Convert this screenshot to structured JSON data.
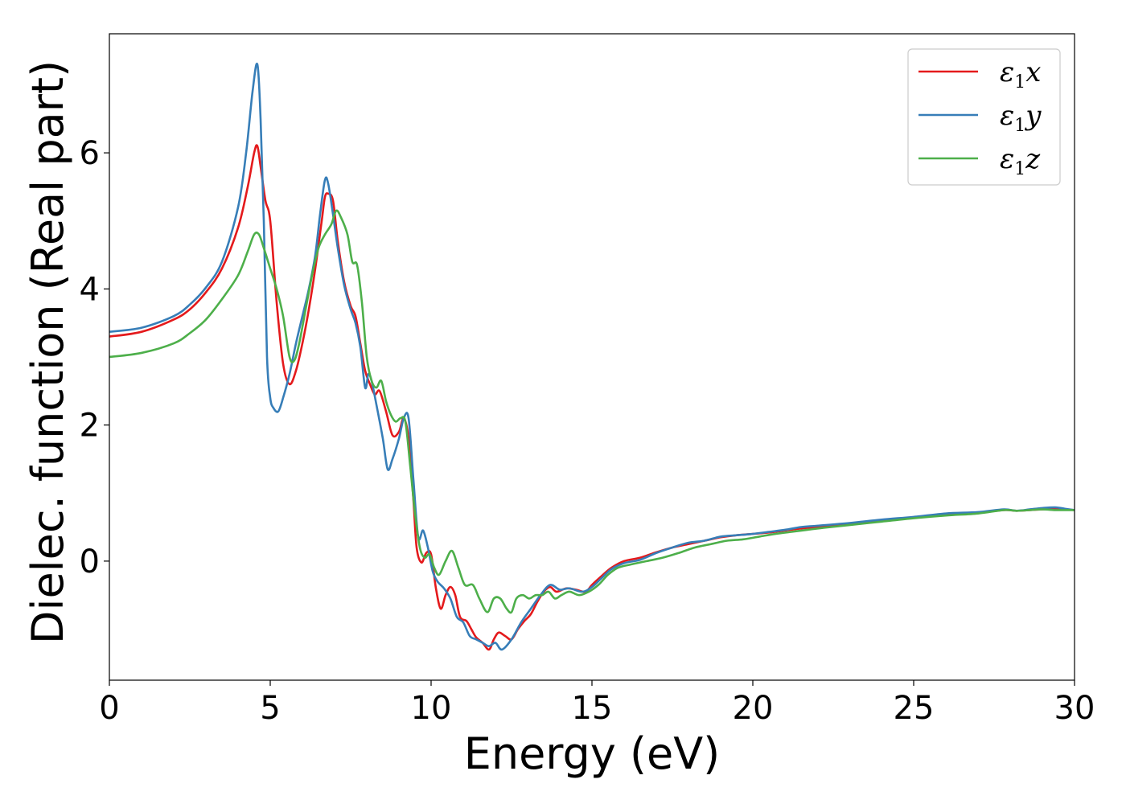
{
  "chart_data": {
    "type": "line",
    "title": "",
    "xlabel": "Energy (eV)",
    "ylabel": "Dielec. function (Real part)",
    "xlim": [
      0,
      30
    ],
    "ylim": [
      -1.75,
      7.75
    ],
    "xticks": [
      0,
      5,
      10,
      15,
      20,
      25,
      30
    ],
    "yticks": [
      0,
      2,
      4,
      6
    ],
    "grid": false,
    "legend_position": "top-right",
    "series": [
      {
        "name": "ε1x",
        "legend_symbol": "ε",
        "legend_subscript": "1",
        "legend_suffix": "x",
        "color": "#e41a1c",
        "x": [
          0,
          1,
          2,
          2.5,
          3,
          3.5,
          4,
          4.3,
          4.5,
          4.6,
          4.7,
          4.85,
          5.0,
          5.2,
          5.4,
          5.6,
          5.8,
          6.0,
          6.2,
          6.4,
          6.6,
          6.7,
          6.8,
          6.95,
          7.1,
          7.3,
          7.5,
          7.65,
          7.8,
          7.95,
          8.1,
          8.25,
          8.4,
          8.6,
          8.8,
          9.0,
          9.15,
          9.3,
          9.45,
          9.55,
          9.7,
          9.85,
          10.0,
          10.15,
          10.3,
          10.45,
          10.6,
          10.75,
          10.9,
          11.1,
          11.25,
          11.4,
          11.6,
          11.8,
          11.95,
          12.1,
          12.3,
          12.5,
          12.7,
          12.9,
          13.1,
          13.3,
          13.5,
          13.7,
          13.9,
          14.2,
          14.5,
          14.8,
          15.0,
          15.3,
          15.6,
          16.0,
          16.5,
          17.0,
          17.5,
          18.0,
          18.5,
          19.0,
          19.5,
          20.0,
          20.5,
          21.0,
          21.5,
          22.0,
          23.0,
          24.0,
          25.0,
          26.0,
          27.0,
          27.8,
          28.2,
          28.6,
          29.0,
          29.4,
          29.7,
          30.0
        ],
        "y": [
          3.3,
          3.37,
          3.55,
          3.7,
          3.95,
          4.3,
          4.9,
          5.5,
          6.0,
          6.1,
          5.8,
          5.3,
          5.0,
          3.8,
          2.9,
          2.6,
          2.8,
          3.2,
          3.7,
          4.3,
          5.0,
          5.35,
          5.4,
          5.3,
          4.7,
          4.1,
          3.75,
          3.6,
          3.2,
          2.8,
          2.6,
          2.45,
          2.5,
          2.2,
          1.85,
          1.9,
          2.1,
          1.8,
          0.9,
          0.2,
          -0.02,
          0.12,
          0.1,
          -0.4,
          -0.7,
          -0.5,
          -0.38,
          -0.5,
          -0.82,
          -0.88,
          -1.0,
          -1.12,
          -1.2,
          -1.3,
          -1.15,
          -1.05,
          -1.1,
          -1.15,
          -1.0,
          -0.88,
          -0.78,
          -0.6,
          -0.45,
          -0.38,
          -0.45,
          -0.4,
          -0.42,
          -0.45,
          -0.35,
          -0.22,
          -0.1,
          0.0,
          0.05,
          0.13,
          0.2,
          0.25,
          0.3,
          0.35,
          0.38,
          0.4,
          0.42,
          0.45,
          0.48,
          0.5,
          0.55,
          0.6,
          0.64,
          0.68,
          0.71,
          0.75,
          0.74,
          0.75,
          0.76,
          0.77,
          0.76,
          0.75
        ]
      },
      {
        "name": "ε1y",
        "legend_symbol": "ε",
        "legend_subscript": "1",
        "legend_suffix": "y",
        "color": "#377eb8",
        "x": [
          0,
          1,
          2,
          2.5,
          3,
          3.5,
          4,
          4.25,
          4.45,
          4.6,
          4.7,
          4.8,
          4.9,
          5.0,
          5.1,
          5.25,
          5.4,
          5.6,
          5.8,
          6.0,
          6.2,
          6.4,
          6.55,
          6.7,
          6.8,
          6.95,
          7.1,
          7.3,
          7.5,
          7.65,
          7.8,
          7.95,
          8.05,
          8.15,
          8.3,
          8.5,
          8.65,
          8.8,
          9.0,
          9.15,
          9.3,
          9.45,
          9.6,
          9.75,
          9.9,
          10.05,
          10.2,
          10.4,
          10.6,
          10.8,
          11.0,
          11.2,
          11.4,
          11.6,
          11.8,
          12.0,
          12.2,
          12.5,
          12.8,
          13.1,
          13.4,
          13.7,
          14.0,
          14.3,
          14.7,
          15.0,
          15.3,
          15.6,
          16.0,
          16.5,
          17.0,
          17.5,
          18.0,
          18.5,
          19.0,
          19.5,
          20.0,
          20.5,
          21.0,
          21.5,
          22.0,
          23.0,
          24.0,
          25.0,
          26.0,
          27.0,
          27.8,
          28.2,
          28.6,
          29.0,
          29.4,
          29.7,
          30.0
        ],
        "y": [
          3.37,
          3.43,
          3.6,
          3.77,
          4.02,
          4.4,
          5.2,
          6.0,
          6.9,
          7.3,
          6.5,
          5.0,
          3.0,
          2.4,
          2.25,
          2.2,
          2.4,
          2.75,
          3.2,
          3.6,
          4.0,
          4.5,
          5.1,
          5.6,
          5.55,
          5.1,
          4.6,
          4.05,
          3.7,
          3.5,
          3.15,
          2.55,
          2.75,
          2.65,
          2.3,
          1.8,
          1.35,
          1.5,
          1.8,
          2.1,
          2.1,
          1.2,
          0.35,
          0.45,
          0.2,
          -0.15,
          -0.3,
          -0.4,
          -0.55,
          -0.82,
          -0.9,
          -1.1,
          -1.15,
          -1.2,
          -1.25,
          -1.2,
          -1.3,
          -1.15,
          -0.9,
          -0.7,
          -0.5,
          -0.35,
          -0.42,
          -0.4,
          -0.45,
          -0.38,
          -0.25,
          -0.12,
          -0.03,
          0.02,
          0.12,
          0.2,
          0.27,
          0.3,
          0.36,
          0.38,
          0.4,
          0.43,
          0.46,
          0.5,
          0.52,
          0.56,
          0.61,
          0.65,
          0.7,
          0.72,
          0.76,
          0.74,
          0.76,
          0.78,
          0.79,
          0.77,
          0.75
        ]
      },
      {
        "name": "ε1z",
        "legend_symbol": "ε",
        "legend_subscript": "1",
        "legend_suffix": "z",
        "color": "#4daf4a",
        "x": [
          0,
          1,
          2,
          2.5,
          3,
          3.5,
          4,
          4.3,
          4.5,
          4.65,
          4.8,
          5.0,
          5.2,
          5.4,
          5.6,
          5.75,
          5.9,
          6.1,
          6.3,
          6.5,
          6.7,
          6.9,
          7.05,
          7.2,
          7.4,
          7.55,
          7.7,
          7.85,
          8.0,
          8.15,
          8.3,
          8.45,
          8.6,
          8.75,
          8.9,
          9.05,
          9.2,
          9.35,
          9.5,
          9.65,
          9.8,
          9.95,
          10.1,
          10.25,
          10.45,
          10.65,
          10.85,
          11.05,
          11.3,
          11.5,
          11.75,
          11.95,
          12.15,
          12.35,
          12.5,
          12.65,
          12.85,
          13.05,
          13.25,
          13.45,
          13.65,
          13.85,
          14.05,
          14.3,
          14.6,
          14.9,
          15.2,
          15.5,
          15.8,
          16.2,
          16.7,
          17.2,
          17.7,
          18.2,
          18.7,
          19.2,
          19.7,
          20.2,
          20.7,
          21.2,
          21.7,
          22.2,
          23.0,
          24.0,
          25.0,
          26.0,
          27.0,
          27.8,
          28.2,
          28.6,
          29.0,
          29.4,
          29.7,
          30.0
        ],
        "y": [
          3.0,
          3.06,
          3.2,
          3.35,
          3.55,
          3.85,
          4.2,
          4.55,
          4.8,
          4.8,
          4.6,
          4.3,
          4.0,
          3.6,
          3.0,
          2.95,
          3.2,
          3.7,
          4.2,
          4.6,
          4.8,
          4.95,
          5.15,
          5.05,
          4.8,
          4.4,
          4.35,
          3.8,
          3.0,
          2.65,
          2.55,
          2.65,
          2.35,
          2.15,
          2.05,
          2.1,
          2.05,
          1.4,
          0.7,
          0.2,
          0.05,
          0.1,
          -0.1,
          -0.2,
          0.0,
          0.15,
          -0.1,
          -0.35,
          -0.35,
          -0.55,
          -0.75,
          -0.55,
          -0.55,
          -0.7,
          -0.75,
          -0.55,
          -0.5,
          -0.55,
          -0.5,
          -0.5,
          -0.45,
          -0.55,
          -0.5,
          -0.45,
          -0.5,
          -0.45,
          -0.35,
          -0.2,
          -0.1,
          -0.05,
          0.0,
          0.05,
          0.12,
          0.2,
          0.25,
          0.3,
          0.32,
          0.36,
          0.4,
          0.43,
          0.46,
          0.49,
          0.53,
          0.58,
          0.63,
          0.67,
          0.7,
          0.75,
          0.74,
          0.75,
          0.76,
          0.75,
          0.75,
          0.75
        ]
      }
    ]
  }
}
